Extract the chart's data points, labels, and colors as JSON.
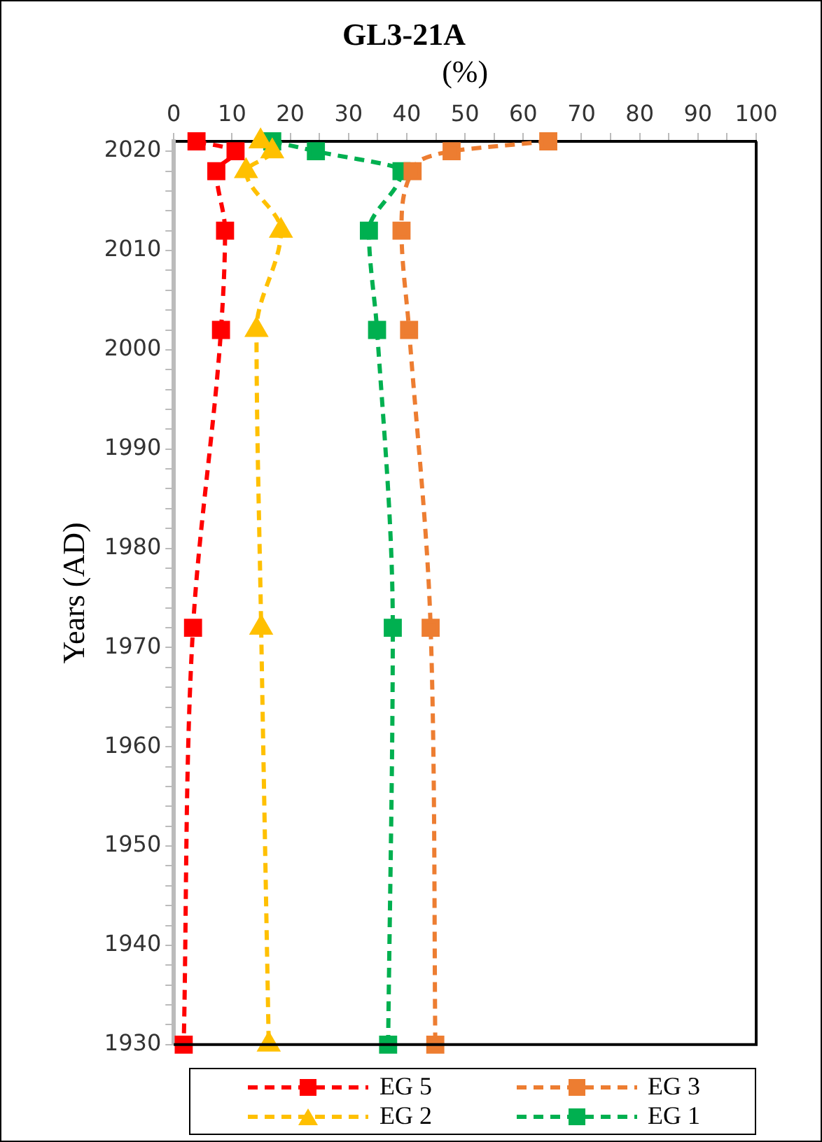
{
  "chart_data": {
    "type": "line",
    "title": "GL3-21A",
    "xlabel": "(%)",
    "ylabel": "Years (AD)",
    "xlim": [
      0,
      100
    ],
    "xticks": [
      0,
      {
        "value": 5,
        "label": null
      },
      10,
      {
        "value": 15,
        "label": null
      },
      20,
      {
        "value": 25,
        "label": null
      },
      30,
      {
        "value": 35,
        "label": null
      },
      40,
      {
        "value": 45,
        "label": null
      },
      50,
      {
        "value": 55,
        "label": null
      },
      60,
      {
        "value": 65,
        "label": null
      },
      70,
      {
        "value": 75,
        "label": null
      },
      80,
      {
        "value": 85,
        "label": null
      },
      90,
      {
        "value": 95,
        "label": null
      },
      100
    ],
    "ylim": [
      1930,
      2021
    ],
    "yticks": [
      1930,
      {
        "value": 1932,
        "label": null
      },
      {
        "value": 1934,
        "label": null
      },
      {
        "value": 1936,
        "label": null
      },
      {
        "value": 1938,
        "label": null
      },
      1940,
      {
        "value": 1942,
        "label": null
      },
      {
        "value": 1944,
        "label": null
      },
      {
        "value": 1946,
        "label": null
      },
      {
        "value": 1948,
        "label": null
      },
      1950,
      {
        "value": 1952,
        "label": null
      },
      {
        "value": 1954,
        "label": null
      },
      {
        "value": 1956,
        "label": null
      },
      {
        "value": 1958,
        "label": null
      },
      1960,
      {
        "value": 1962,
        "label": null
      },
      {
        "value": 1964,
        "label": null
      },
      {
        "value": 1966,
        "label": null
      },
      {
        "value": 1968,
        "label": null
      },
      1970,
      {
        "value": 1972,
        "label": null
      },
      {
        "value": 1974,
        "label": null
      },
      {
        "value": 1976,
        "label": null
      },
      {
        "value": 1978,
        "label": null
      },
      1980,
      {
        "value": 1982,
        "label": null
      },
      {
        "value": 1984,
        "label": null
      },
      {
        "value": 1986,
        "label": null
      },
      {
        "value": 1988,
        "label": null
      },
      1990,
      {
        "value": 1992,
        "label": null
      },
      {
        "value": 1994,
        "label": null
      },
      {
        "value": 1996,
        "label": null
      },
      {
        "value": 1998,
        "label": null
      },
      2000,
      {
        "value": 2002,
        "label": null
      },
      {
        "value": 2004,
        "label": null
      },
      {
        "value": 2006,
        "label": null
      },
      {
        "value": 2008,
        "label": null
      },
      2010,
      {
        "value": 2012,
        "label": null
      },
      {
        "value": 2014,
        "label": null
      },
      {
        "value": 2016,
        "label": null
      },
      {
        "value": 2018,
        "label": null
      },
      2020
    ],
    "grid": false,
    "legend": "bottom",
    "line_style": "dashed",
    "series": [
      {
        "name": "EG 5",
        "color": "#ff0000",
        "marker": "square",
        "x": [
          3.9,
          10.6,
          7.3,
          8.8,
          8.1,
          3.3,
          1.7
        ],
        "values": [
          2021,
          2020,
          2018,
          2012,
          2002,
          1972,
          1930
        ]
      },
      {
        "name": "EG 3",
        "color": "#ed7d31",
        "marker": "square",
        "x": [
          64.3,
          47.7,
          41,
          39.1,
          40.4,
          44.1,
          44.9
        ],
        "values": [
          2021,
          2020,
          2018,
          2012,
          2002,
          1972,
          1930
        ]
      },
      {
        "name": "EG 2",
        "color": "#ffc000",
        "marker": "triangle",
        "x": [
          14.9,
          16.9,
          12.4,
          18.4,
          14.2,
          15,
          16.3
        ],
        "values": [
          2021,
          2020,
          2018,
          2012,
          2002,
          1972,
          1930
        ]
      },
      {
        "name": "EG 1",
        "color": "#00b050",
        "marker": "square",
        "x": [
          16.9,
          24.4,
          39.1,
          33.5,
          34.9,
          37.6,
          36.8
        ],
        "values": [
          2021,
          2020,
          2018,
          2012,
          2002,
          1972,
          1930
        ]
      }
    ]
  }
}
